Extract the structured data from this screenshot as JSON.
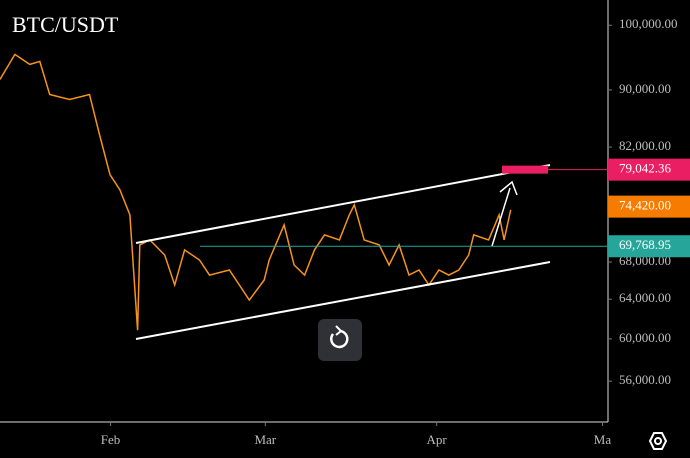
{
  "chart_data": {
    "type": "line",
    "title": "BTC/USDT",
    "log_scale": true,
    "background": "#000000",
    "x": [
      12,
      14.7,
      17.4,
      19.2,
      21,
      24.6,
      28.2,
      30,
      31.9,
      33.7,
      35.5,
      36.4,
      36.9,
      37.3,
      39.1,
      41.8,
      43.6,
      45.4,
      48.1,
      49.9,
      53.5,
      57.1,
      59.8,
      60.7,
      63.4,
      65.2,
      67.1,
      68.9,
      70.7,
      73.4,
      75.2,
      76.1,
      77.9,
      80.6,
      82.4,
      84.2,
      86,
      87.8,
      89.6,
      91.4,
      93.2,
      95,
      96.8,
      97.7,
      100.4,
      102.3,
      103.2,
      104.4
    ],
    "series": [
      {
        "color": "#f7931a",
        "values": [
          91560,
          95370,
          93830,
          94290,
          89340,
          88610,
          89340,
          83690,
          78390,
          76490,
          73430,
          64960,
          60850,
          69920,
          70490,
          68780,
          65500,
          69350,
          68220,
          66570,
          67120,
          63910,
          66040,
          68220,
          72240,
          67670,
          66570,
          69350,
          71070,
          70490,
          73430,
          74640,
          70490,
          69920,
          67670,
          69920,
          66570,
          67120,
          65500,
          67120,
          66570,
          67120,
          68780,
          71070,
          70490,
          73430,
          70490,
          74030
        ]
      }
    ],
    "xlim": [
      12,
      122
    ],
    "xticks": [
      {
        "value": 32,
        "label": "Feb"
      },
      {
        "value": 60,
        "label": "Mar"
      },
      {
        "value": 91,
        "label": "Apr"
      },
      {
        "value": 121,
        "label": "Ma"
      }
    ],
    "ylim": [
      52400,
      104200
    ],
    "yticks": [
      {
        "value": 56000,
        "label": "56,000.00"
      },
      {
        "value": 60000,
        "label": "60,000.00"
      },
      {
        "value": 64000,
        "label": "64,000.00"
      },
      {
        "value": 68000,
        "label": "68,000.00"
      },
      {
        "value": 82000,
        "label": "82,000.00"
      },
      {
        "value": 90000,
        "label": "90,000.00"
      },
      {
        "value": 100000,
        "label": "100,000.00"
      }
    ],
    "price_labels": [
      {
        "value": 79042.36,
        "label": "79,042.36",
        "color": "#e91e63",
        "line": true
      },
      {
        "value": 74420,
        "label": "74,420.00",
        "color": "#f57c00",
        "line": false
      },
      {
        "value": 69768.95,
        "label": "69,768.95",
        "color": "#26a69a",
        "line": true
      }
    ]
  }
}
